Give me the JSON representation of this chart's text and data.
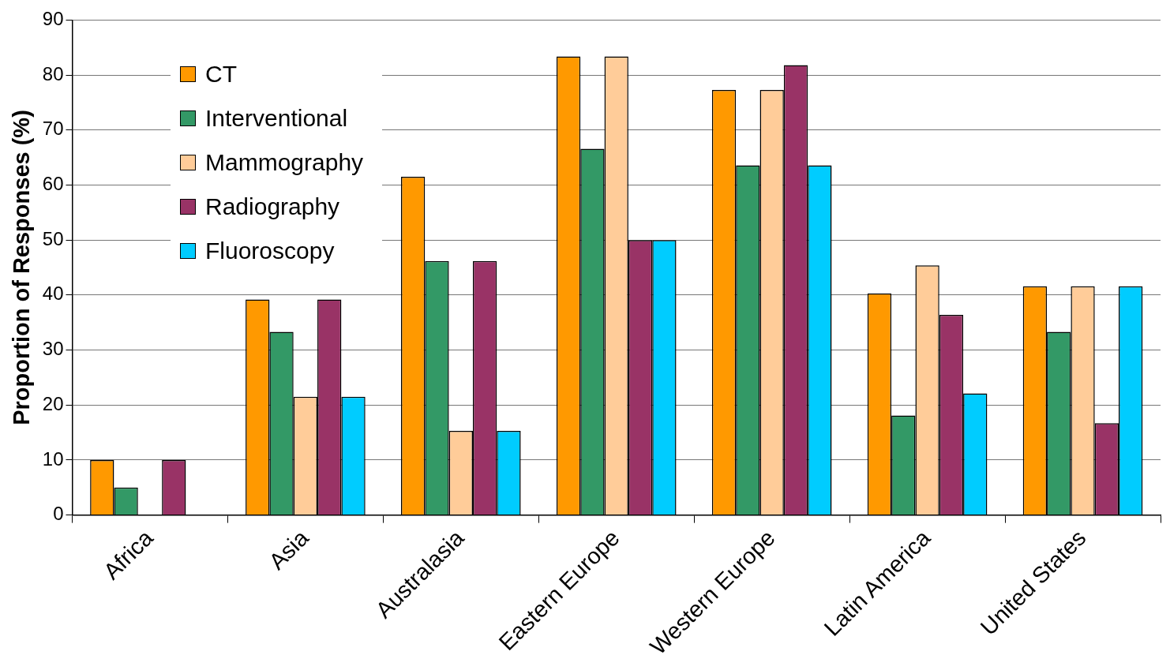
{
  "chart_data": {
    "type": "bar",
    "ylabel": "Proportion of Responses (%)",
    "categories": [
      "Africa",
      "Asia",
      "Australasia",
      "Eastern Europe",
      "Western Europe",
      "Latin America",
      "United States"
    ],
    "series": [
      {
        "name": "CT",
        "color": "#ff9900",
        "values": [
          10,
          39.2,
          61.5,
          83.4,
          77.3,
          40.3,
          41.6
        ]
      },
      {
        "name": "Interventional",
        "color": "#339966",
        "values": [
          5,
          33.3,
          46.2,
          66.6,
          63.6,
          18.1,
          33.3
        ]
      },
      {
        "name": "Mammography",
        "color": "#ffcc99",
        "values": [
          0,
          21.5,
          15.3,
          83.4,
          77.3,
          45.4,
          41.6
        ]
      },
      {
        "name": "Radiography",
        "color": "#993366",
        "values": [
          10,
          39.2,
          46.2,
          50,
          81.8,
          36.4,
          16.7
        ]
      },
      {
        "name": "Fluoroscopy",
        "color": "#00ccff",
        "values": [
          0,
          21.5,
          15.3,
          50,
          63.6,
          22.1,
          41.6
        ]
      }
    ],
    "ylim": [
      0,
      90
    ],
    "yticks": [
      0,
      10,
      20,
      30,
      40,
      50,
      60,
      70,
      80,
      90
    ],
    "grid": "y",
    "legend": "top left"
  }
}
